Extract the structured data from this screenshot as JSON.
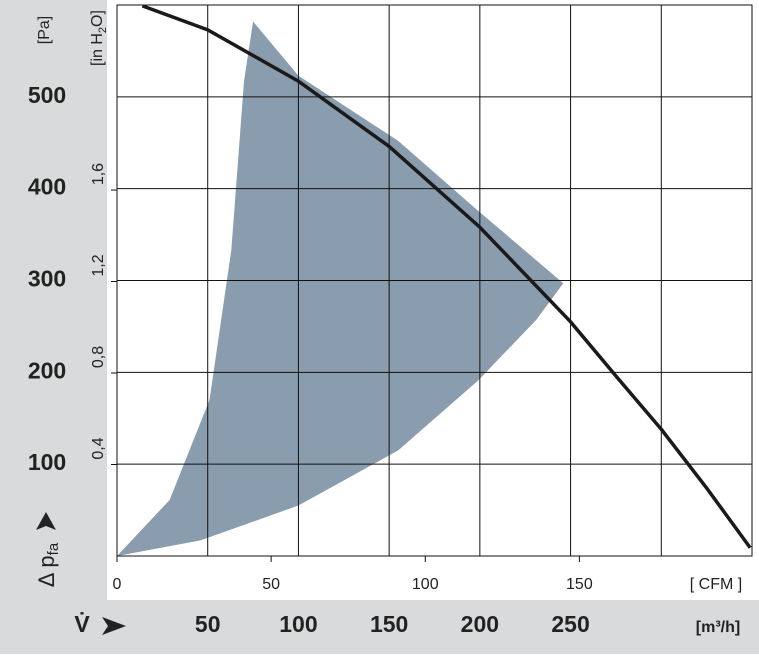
{
  "chart_data": {
    "type": "line",
    "xlabel": "V̇",
    "xunit": "[m³/h]",
    "ylabel": {
      "text": "Δ p",
      "sub": "fa"
    },
    "yunit": "[Pa]",
    "y2label": {
      "text": "[in H",
      "sub": "2",
      "tail": "O]"
    },
    "x2unit": "[ CFM ]",
    "xlim": [
      0,
      350
    ],
    "xticks": [
      50,
      100,
      150,
      200,
      250
    ],
    "xgrid": [
      50,
      100,
      150,
      200,
      250,
      300
    ],
    "ylim": [
      0,
      600
    ],
    "yticks": [
      100,
      200,
      300,
      400,
      500
    ],
    "y2lim": [
      0,
      2.409
    ],
    "y2ticks": [
      {
        "value": 0.4,
        "label": "0,4"
      },
      {
        "value": 0.8,
        "label": "0,8"
      },
      {
        "value": 1.2,
        "label": "1,2"
      },
      {
        "value": 1.6,
        "label": "1,6"
      }
    ],
    "x2lim": [
      0,
      206
    ],
    "x2ticks": [
      0,
      50,
      100,
      150
    ],
    "grid": true,
    "x": [
      14,
      50,
      100,
      150,
      200,
      250,
      275,
      300,
      325,
      349
    ],
    "values": [
      599,
      573,
      517,
      446,
      358,
      255,
      196,
      138,
      74,
      9
    ],
    "color": "#1a1a1a",
    "region": {
      "color": "#8a9dae",
      "x": [
        75,
        70,
        63,
        51,
        29,
        0,
        46,
        100,
        155,
        199,
        231,
        246,
        199,
        155,
        100,
        75
      ],
      "y": [
        582,
        517,
        333,
        170,
        61,
        0,
        17,
        55,
        115,
        191,
        257,
        297,
        376,
        452,
        523,
        582
      ]
    }
  }
}
